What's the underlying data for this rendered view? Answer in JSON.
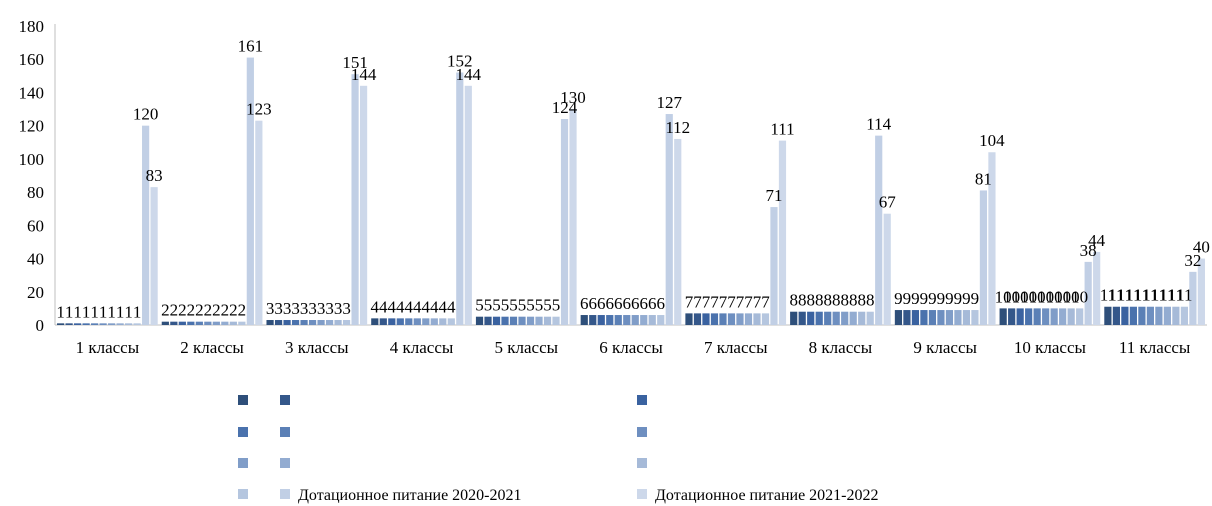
{
  "chart_data": {
    "type": "bar",
    "title": "",
    "xlabel": "",
    "ylabel": "",
    "ylim": [
      0,
      180
    ],
    "yticks": [
      "0",
      "20",
      "40",
      "60",
      "80",
      "100",
      "120",
      "140",
      "160",
      "180"
    ],
    "categories": [
      "1 классы",
      "2 классы",
      "3 классы",
      "4 классы",
      "5 классы",
      "6 классы",
      "7 классы",
      "8 классы",
      "9 классы",
      "10 классы",
      "11 классы"
    ],
    "grid": false,
    "legend_position": "bottom",
    "series": [
      {
        "color": "#2e4f7a",
        "values": [
          1,
          2,
          3,
          4,
          5,
          6,
          7,
          8,
          9,
          10,
          11
        ]
      },
      {
        "color": "#34578a",
        "values": [
          1,
          2,
          3,
          4,
          5,
          6,
          7,
          8,
          9,
          10,
          11
        ]
      },
      {
        "color": "#3a62a0",
        "values": [
          1,
          2,
          3,
          4,
          5,
          6,
          7,
          8,
          9,
          10,
          11
        ]
      },
      {
        "color": "#4a72ad",
        "values": [
          1,
          2,
          3,
          4,
          5,
          6,
          7,
          8,
          9,
          10,
          11
        ]
      },
      {
        "color": "#5b80b6",
        "values": [
          1,
          2,
          3,
          4,
          5,
          6,
          7,
          8,
          9,
          10,
          11
        ]
      },
      {
        "color": "#6e8fc0",
        "values": [
          1,
          2,
          3,
          4,
          5,
          6,
          7,
          8,
          9,
          10,
          11
        ]
      },
      {
        "color": "#809dc8",
        "values": [
          1,
          2,
          3,
          4,
          5,
          6,
          7,
          8,
          9,
          10,
          11
        ]
      },
      {
        "color": "#93acd1",
        "values": [
          1,
          2,
          3,
          4,
          5,
          6,
          7,
          8,
          9,
          10,
          11
        ]
      },
      {
        "color": "#a6bad8",
        "values": [
          1,
          2,
          3,
          4,
          5,
          6,
          7,
          8,
          9,
          10,
          11
        ]
      },
      {
        "color": "#b5c6df",
        "values": [
          1,
          2,
          3,
          4,
          5,
          6,
          7,
          8,
          9,
          10,
          11
        ]
      },
      {
        "name": "Дотационное питание 2020-2021",
        "color": "#c1cfe5",
        "values": [
          120,
          161,
          151,
          152,
          124,
          127,
          71,
          114,
          81,
          38,
          32
        ]
      },
      {
        "name": "Дотационное питание 2021-2022",
        "color": "#cdd8ea",
        "values": [
          83,
          123,
          144,
          144,
          130,
          112,
          111,
          67,
          104,
          44,
          40
        ]
      }
    ]
  }
}
